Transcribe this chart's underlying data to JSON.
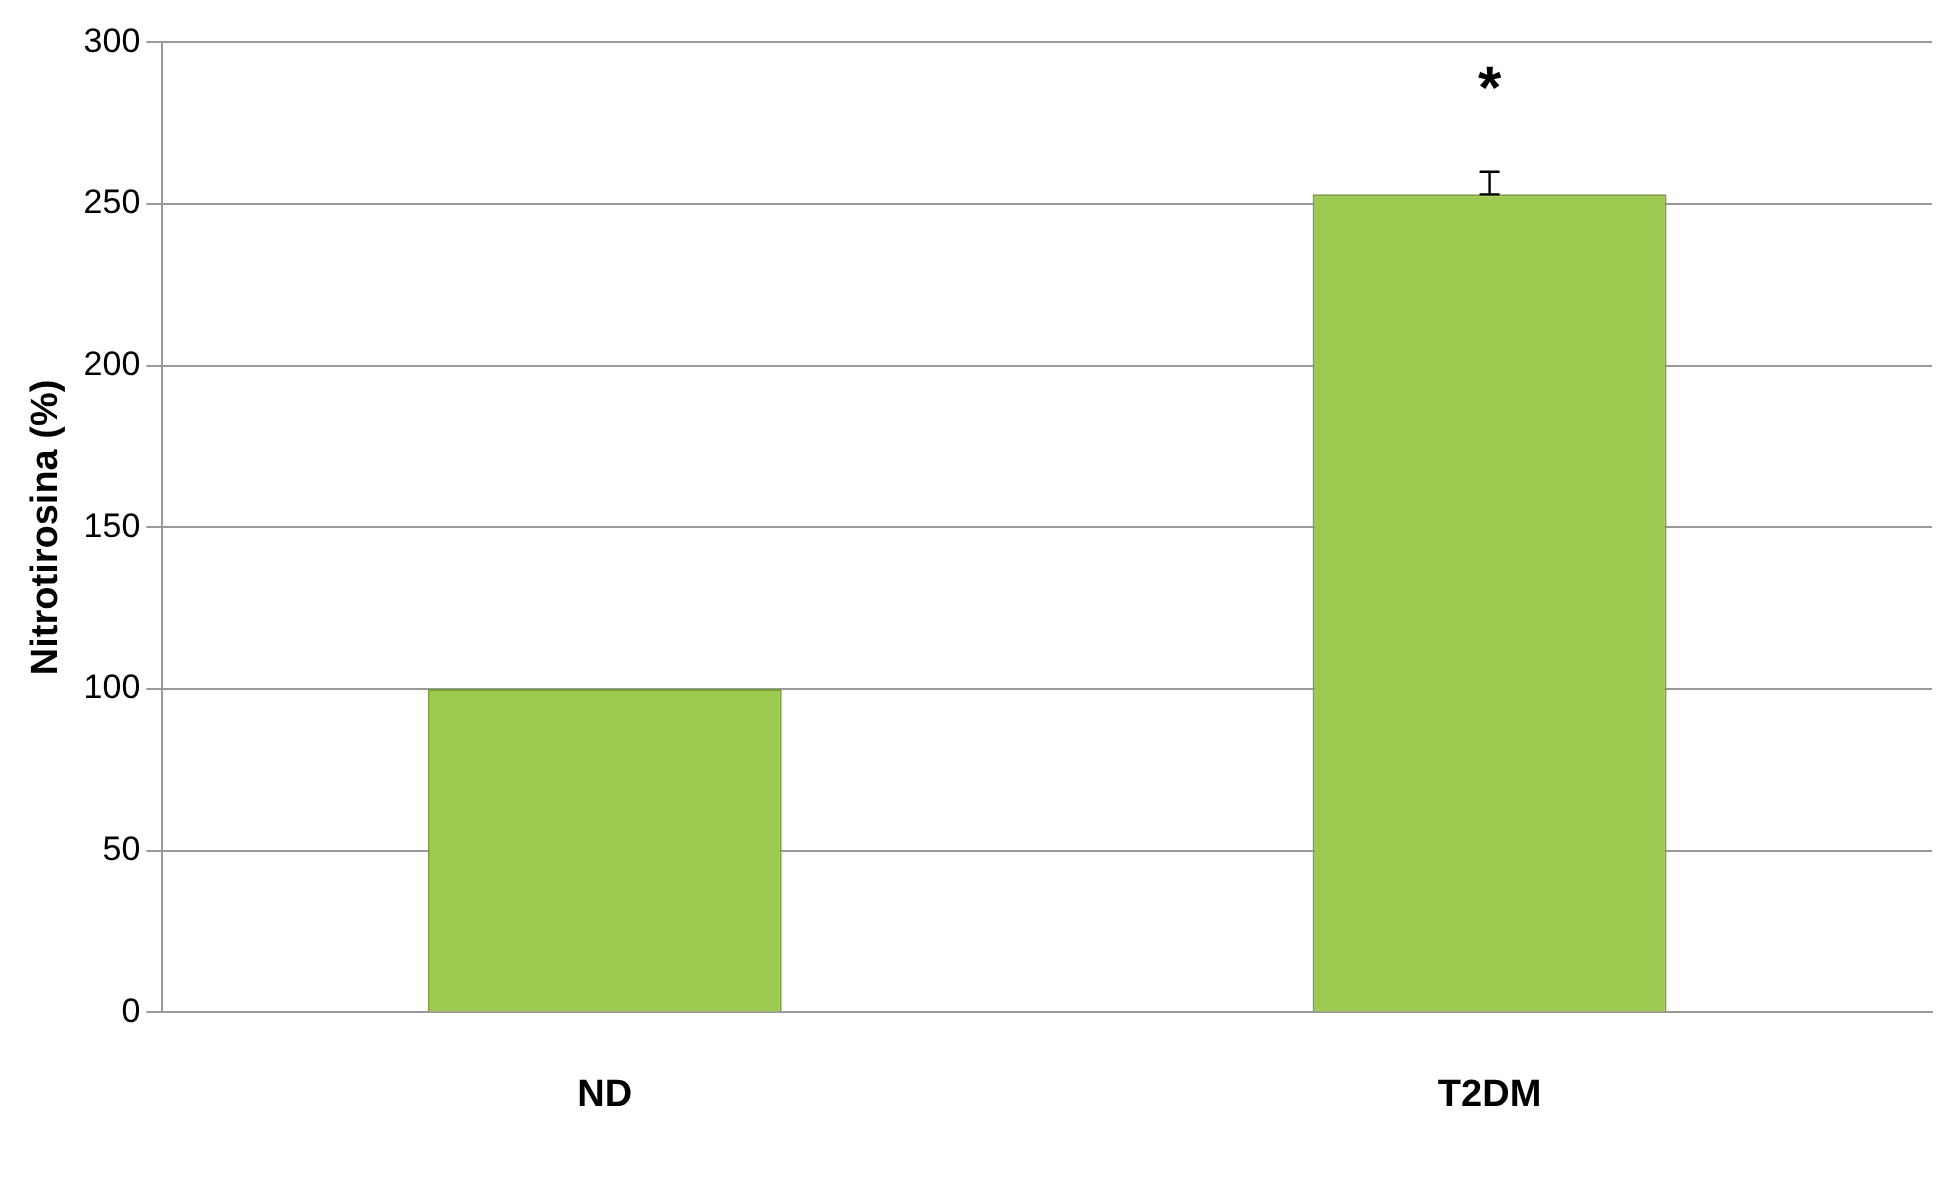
{
  "chart_data": {
    "type": "bar",
    "ylabel": "Nitrotirosina (%)",
    "categories": [
      "ND",
      "T2DM"
    ],
    "values": [
      100,
      253
    ],
    "errors": [
      null,
      [
        253,
        260
      ]
    ],
    "color": "#9cc94f",
    "ylim": [
      0,
      300
    ],
    "yticks": [
      0,
      50,
      100,
      150,
      200,
      250,
      300
    ],
    "grid": "y",
    "legend": false,
    "annotations": [
      "*"
    ]
  }
}
